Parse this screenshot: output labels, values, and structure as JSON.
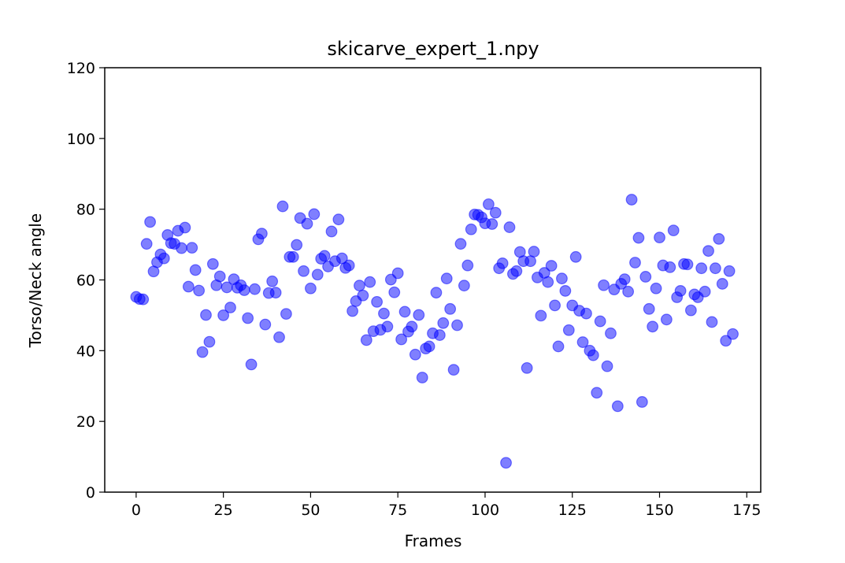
{
  "chart_data": {
    "type": "scatter",
    "title": "skicarve_expert_1.npy",
    "xlabel": "Frames",
    "ylabel": "Torso/Neck angle",
    "xlim": [
      -9,
      179
    ],
    "ylim": [
      0,
      120
    ],
    "xticks": [
      0,
      25,
      50,
      75,
      100,
      125,
      150,
      175
    ],
    "yticks": [
      0,
      20,
      40,
      60,
      80,
      100,
      120
    ],
    "grid": false,
    "legend": "none",
    "marker_color": "#0000ff",
    "marker_alpha": 0.5,
    "series": [
      {
        "x": [
          0,
          1,
          2,
          3,
          4,
          5,
          6,
          7,
          8,
          9,
          10,
          11,
          12,
          13,
          14,
          15,
          16,
          17,
          18,
          19,
          20,
          21,
          22,
          23,
          24,
          25,
          26,
          27,
          28,
          29,
          30,
          31,
          32,
          33,
          34,
          35,
          36,
          37,
          38,
          39,
          40,
          41,
          42,
          43,
          44,
          45,
          46,
          47,
          48,
          49,
          50,
          51,
          52,
          53,
          54,
          55,
          56,
          57,
          58,
          59,
          60,
          61,
          62,
          63,
          64,
          65,
          66,
          67,
          68,
          69,
          70,
          71,
          72,
          73,
          74,
          75,
          76,
          77,
          78,
          79,
          80,
          81,
          82,
          83,
          84,
          85,
          86,
          87,
          88,
          89,
          90,
          91,
          92,
          93,
          94,
          95,
          96,
          97,
          98,
          99,
          100,
          101,
          102,
          103,
          104,
          105,
          106,
          107,
          108,
          109,
          110,
          111,
          112,
          113,
          114,
          115,
          116,
          117,
          118,
          119,
          120,
          121,
          122,
          123,
          124,
          125,
          126,
          127,
          128,
          129,
          130,
          131,
          132,
          133,
          134,
          135,
          136,
          137,
          138,
          139,
          140,
          141,
          142,
          143,
          144,
          145,
          146,
          147,
          148,
          149,
          150,
          151,
          152,
          153,
          154,
          155,
          156,
          157,
          158,
          159,
          160,
          161,
          162,
          163,
          164,
          165,
          166,
          167,
          168,
          169,
          170,
          171
        ],
        "y": [
          55.2,
          54.6,
          54.5,
          70.2,
          76.4,
          62.4,
          65.0,
          67.2,
          66.1,
          72.7,
          70.4,
          70.2,
          73.9,
          69.0,
          74.8,
          58.1,
          69.1,
          62.8,
          57.0,
          39.6,
          50.1,
          42.5,
          64.5,
          58.5,
          61.0,
          50.0,
          57.9,
          52.2,
          60.2,
          57.8,
          58.5,
          57.1,
          49.2,
          36.1,
          57.4,
          71.5,
          73.1,
          47.4,
          56.3,
          59.6,
          56.4,
          43.8,
          80.8,
          50.4,
          66.5,
          66.5,
          69.9,
          77.5,
          62.5,
          75.9,
          57.6,
          78.6,
          61.5,
          66.0,
          66.8,
          63.8,
          73.7,
          65.3,
          77.1,
          66.1,
          63.4,
          64.1,
          51.2,
          54.0,
          58.4,
          55.6,
          43.0,
          59.4,
          45.5,
          53.8,
          45.9,
          50.5,
          46.8,
          60.1,
          56.5,
          61.9,
          43.2,
          51.0,
          45.4,
          46.8,
          38.9,
          50.1,
          32.4,
          40.6,
          41.2,
          44.9,
          56.4,
          44.4,
          47.8,
          60.4,
          51.8,
          34.6,
          47.2,
          70.2,
          58.4,
          64.1,
          74.3,
          78.5,
          78.4,
          77.7,
          76.0,
          81.4,
          75.8,
          79.0,
          63.3,
          64.7,
          8.3,
          74.9,
          61.7,
          62.5,
          67.9,
          65.3,
          35.1,
          65.3,
          68.0,
          60.7,
          49.9,
          62.0,
          59.4,
          64.0,
          52.8,
          41.2,
          60.4,
          56.9,
          45.8,
          52.8,
          66.5,
          51.3,
          42.4,
          50.5,
          40.0,
          38.7,
          28.1,
          48.3,
          58.5,
          35.6,
          44.9,
          57.3,
          24.3,
          58.9,
          60.2,
          56.7,
          82.7,
          64.9,
          71.9,
          25.5,
          60.9,
          51.8,
          46.8,
          57.6,
          72.0,
          64.1,
          48.8,
          63.6,
          74.0,
          55.1,
          56.9,
          64.5,
          64.4,
          51.4,
          55.9,
          55.1,
          63.3,
          56.7,
          68.2,
          48.1,
          63.3,
          71.6,
          58.9,
          42.8,
          62.5,
          44.7
        ]
      }
    ]
  }
}
